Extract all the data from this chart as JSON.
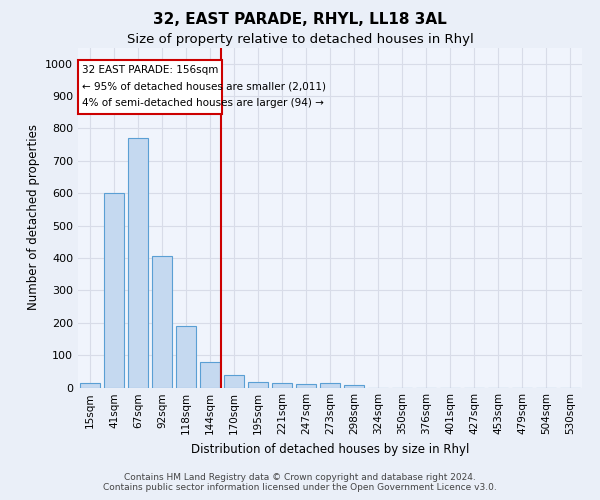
{
  "title": "32, EAST PARADE, RHYL, LL18 3AL",
  "subtitle": "Size of property relative to detached houses in Rhyl",
  "xlabel": "Distribution of detached houses by size in Rhyl",
  "ylabel": "Number of detached properties",
  "categories": [
    "15sqm",
    "41sqm",
    "67sqm",
    "92sqm",
    "118sqm",
    "144sqm",
    "170sqm",
    "195sqm",
    "221sqm",
    "247sqm",
    "273sqm",
    "298sqm",
    "324sqm",
    "350sqm",
    "376sqm",
    "401sqm",
    "427sqm",
    "453sqm",
    "479sqm",
    "504sqm",
    "530sqm"
  ],
  "values": [
    15,
    600,
    770,
    405,
    190,
    78,
    40,
    18,
    15,
    10,
    14,
    8,
    0,
    0,
    0,
    0,
    0,
    0,
    0,
    0,
    0
  ],
  "bar_color": "#c5d9f0",
  "bar_edge_color": "#5a9fd4",
  "vline_color": "#cc0000",
  "annotation_line1": "32 EAST PARADE: 156sqm",
  "annotation_line2": "← 95% of detached houses are smaller (2,011)",
  "annotation_line3": "4% of semi-detached houses are larger (94) →",
  "annotation_box_color": "#cc0000",
  "ylim": [
    0,
    1050
  ],
  "yticks": [
    0,
    100,
    200,
    300,
    400,
    500,
    600,
    700,
    800,
    900,
    1000
  ],
  "footer_line1": "Contains HM Land Registry data © Crown copyright and database right 2024.",
  "footer_line2": "Contains public sector information licensed under the Open Government Licence v3.0.",
  "bg_color": "#eaeff8",
  "plot_bg_color": "#f0f4fc",
  "title_fontsize": 11,
  "subtitle_fontsize": 9.5,
  "grid_color": "#d8dce8",
  "tick_fontsize": 7.5,
  "bar_width": 0.85
}
